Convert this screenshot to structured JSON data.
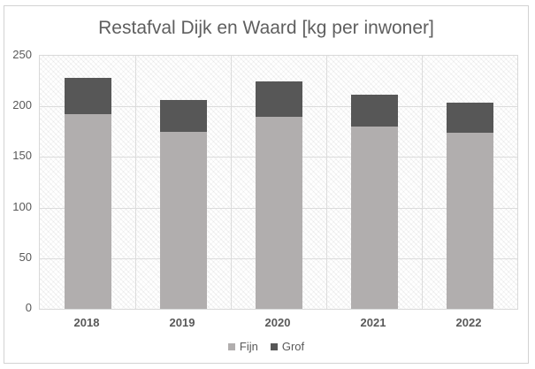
{
  "chart": {
    "title": "Restafval Dijk en Waard [kg per inwoner]"
  },
  "chart_data": {
    "type": "bar",
    "stacked": true,
    "title": "Restafval Dijk en Waard [kg per inwoner]",
    "categories": [
      "2018",
      "2019",
      "2020",
      "2021",
      "2022"
    ],
    "series": [
      {
        "name": "Fijn",
        "color": "#b1aeae",
        "values": [
          192,
          175,
          190,
          180,
          174
        ]
      },
      {
        "name": "Grof",
        "color": "#575757",
        "values": [
          36,
          31,
          35,
          32,
          30
        ]
      }
    ],
    "totals": [
      228,
      206,
      225,
      212,
      204
    ],
    "xlabel": "",
    "ylabel": "",
    "ylim": [
      0,
      250
    ],
    "yticks": [
      0,
      50,
      100,
      150,
      200,
      250
    ],
    "grid": true,
    "vertical_category_gridlines": true,
    "legend_position": "bottom",
    "plot_background": "diagonal-hatch"
  },
  "colors": {
    "fijn": "#b1aeae",
    "grof": "#575757",
    "gridline": "#dcdcdc",
    "axis_text": "#595959",
    "title_text": "#5f5f5f",
    "frame_border": "#d2d2d2"
  }
}
